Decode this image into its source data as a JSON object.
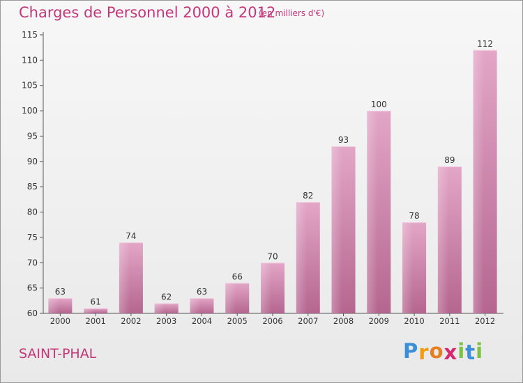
{
  "chart_data": {
    "type": "bar",
    "title": "Charges de Personnel 2000 à 2012",
    "subtitle": "(en milliers d'€)",
    "categories": [
      "2000",
      "2001",
      "2002",
      "2003",
      "2004",
      "2005",
      "2006",
      "2007",
      "2008",
      "2009",
      "2010",
      "2011",
      "2012"
    ],
    "values": [
      63,
      61,
      74,
      62,
      63,
      66,
      70,
      82,
      93,
      100,
      78,
      89,
      112
    ],
    "ylim": [
      60,
      115
    ],
    "yticks": [
      60,
      65,
      70,
      75,
      80,
      85,
      90,
      95,
      100,
      105,
      110,
      115
    ],
    "xlabel": "",
    "ylabel": "",
    "grid": false,
    "legend": "none",
    "bar_color": "#d17fa9",
    "label_color": "#333333"
  },
  "footer": {
    "place": "SAINT-PHAL",
    "logo_letters": [
      "P",
      "r",
      "o",
      "x",
      "i",
      "t",
      "i"
    ],
    "logo_colors": [
      "#3a8fd6",
      "#f39c12",
      "#e67e22",
      "#d6286e",
      "#7cc242",
      "#3a8fd6",
      "#7cc242"
    ]
  },
  "colors": {
    "accent": "#c2377a"
  }
}
